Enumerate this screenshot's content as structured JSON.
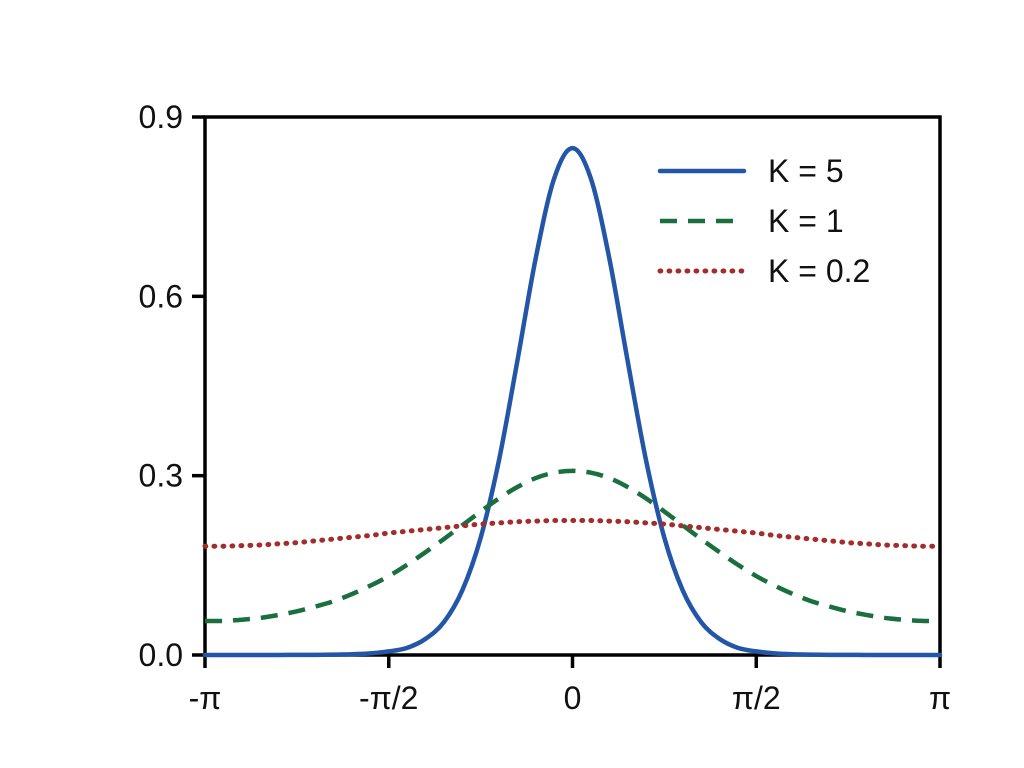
{
  "figure": {
    "background": "#ffffff",
    "frame_color": "#000000",
    "text_color": "#111111"
  },
  "chart_data": {
    "type": "line",
    "title": "",
    "xlabel": "",
    "ylabel": "",
    "x_unit": "multiples_of_pi",
    "xlim": [
      -1,
      1
    ],
    "ylim": [
      0,
      0.9
    ],
    "grid": false,
    "legend_position": "upper right",
    "x_ticks": [
      {
        "value": -1,
        "label": "-π"
      },
      {
        "value": -0.5,
        "label": "-π/2"
      },
      {
        "value": 0,
        "label": "0"
      },
      {
        "value": 0.5,
        "label": "π/2"
      },
      {
        "value": 1,
        "label": "π"
      }
    ],
    "y_ticks": [
      {
        "value": 0.0,
        "label": "0.0"
      },
      {
        "value": 0.3,
        "label": "0.3"
      },
      {
        "value": 0.6,
        "label": "0.6"
      },
      {
        "value": 0.9,
        "label": "0.9"
      }
    ],
    "x": [
      -1,
      -0.95,
      -0.9,
      -0.85,
      -0.8,
      -0.75,
      -0.7,
      -0.65,
      -0.6,
      -0.55,
      -0.5,
      -0.45,
      -0.4,
      -0.35,
      -0.3,
      -0.25,
      -0.2,
      -0.15,
      -0.1,
      -0.05,
      0,
      0.05,
      0.1,
      0.15,
      0.2,
      0.25,
      0.3,
      0.35,
      0.4,
      0.45,
      0.5,
      0.55,
      0.6,
      0.65,
      0.7,
      0.75,
      0.8,
      0.85,
      0.9,
      0.95,
      1
    ],
    "series": [
      {
        "name": "K = 5",
        "color": "#2456a8",
        "style": "solid",
        "values": [
          0,
          0,
          0,
          0.0001,
          0.0001,
          0.0002,
          0.0003,
          0.0006,
          0.0012,
          0.0027,
          0.006,
          0.012,
          0.027,
          0.055,
          0.108,
          0.196,
          0.326,
          0.492,
          0.664,
          0.797,
          0.848,
          0.797,
          0.664,
          0.492,
          0.326,
          0.196,
          0.108,
          0.055,
          0.027,
          0.012,
          0.006,
          0.0027,
          0.0012,
          0.0006,
          0.0003,
          0.0002,
          0.0001,
          0.0001,
          0,
          0,
          0
        ]
      },
      {
        "name": "K = 1",
        "color": "#1a6f3e",
        "style": "dashed",
        "values": [
          0.057,
          0.057,
          0.059,
          0.062,
          0.067,
          0.073,
          0.081,
          0.09,
          0.102,
          0.116,
          0.132,
          0.151,
          0.172,
          0.194,
          0.217,
          0.24,
          0.262,
          0.281,
          0.296,
          0.305,
          0.308,
          0.305,
          0.296,
          0.281,
          0.262,
          0.24,
          0.217,
          0.194,
          0.172,
          0.151,
          0.132,
          0.116,
          0.102,
          0.09,
          0.081,
          0.073,
          0.067,
          0.062,
          0.059,
          0.057,
          0.057
        ]
      },
      {
        "name": "K = 0.2",
        "color": "#a32c2c",
        "style": "dotted",
        "values": [
          0.182,
          0.182,
          0.183,
          0.184,
          0.186,
          0.188,
          0.191,
          0.194,
          0.197,
          0.2,
          0.204,
          0.207,
          0.21,
          0.213,
          0.216,
          0.219,
          0.221,
          0.223,
          0.224,
          0.225,
          0.225,
          0.225,
          0.224,
          0.223,
          0.221,
          0.219,
          0.216,
          0.213,
          0.21,
          0.207,
          0.204,
          0.2,
          0.197,
          0.194,
          0.191,
          0.188,
          0.186,
          0.184,
          0.183,
          0.182,
          0.182
        ]
      }
    ]
  }
}
